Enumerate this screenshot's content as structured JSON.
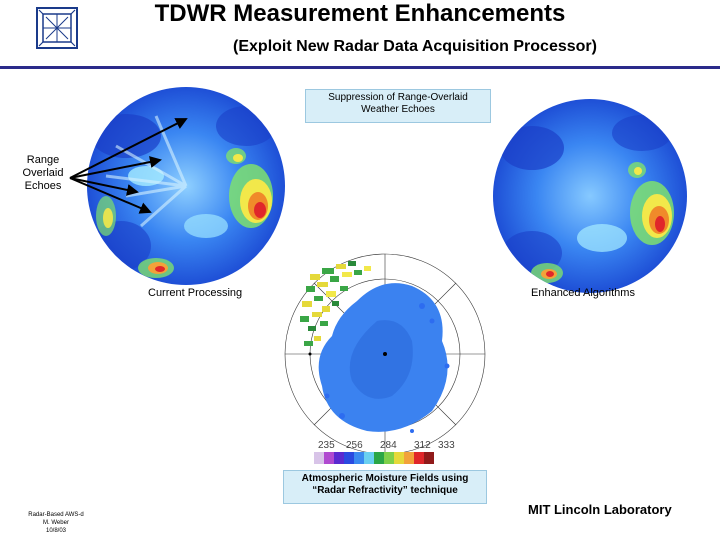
{
  "slide": {
    "title": "TDWR Measurement Enhancements",
    "subtitle": "(Exploit New Radar Data Acquisition Processor)",
    "callout_top": [
      "Suppression of Range-Overlaid",
      "Weather Echoes"
    ],
    "range_label": [
      "Range",
      "Overlaid",
      "Echoes"
    ],
    "caption_left": "Current Processing",
    "caption_right": "Enhanced Algorithms",
    "callout_bottom": [
      "Atmospheric Moisture Fields using",
      "“Radar Refractivity” technique"
    ],
    "scale_labels": [
      "235",
      "256",
      "284",
      "312",
      "333"
    ],
    "footer_left": [
      "Radar-Based AWS-d",
      "M. Weber",
      "10/8/03"
    ],
    "footer_right": "MIT Lincoln Laboratory"
  },
  "colors": {
    "rule": "#2a2a8a",
    "radar_blue": "#2d6cf0",
    "callout_bg": "#d8eef8"
  },
  "icons": [
    "lincoln-lab-logo-icon"
  ]
}
